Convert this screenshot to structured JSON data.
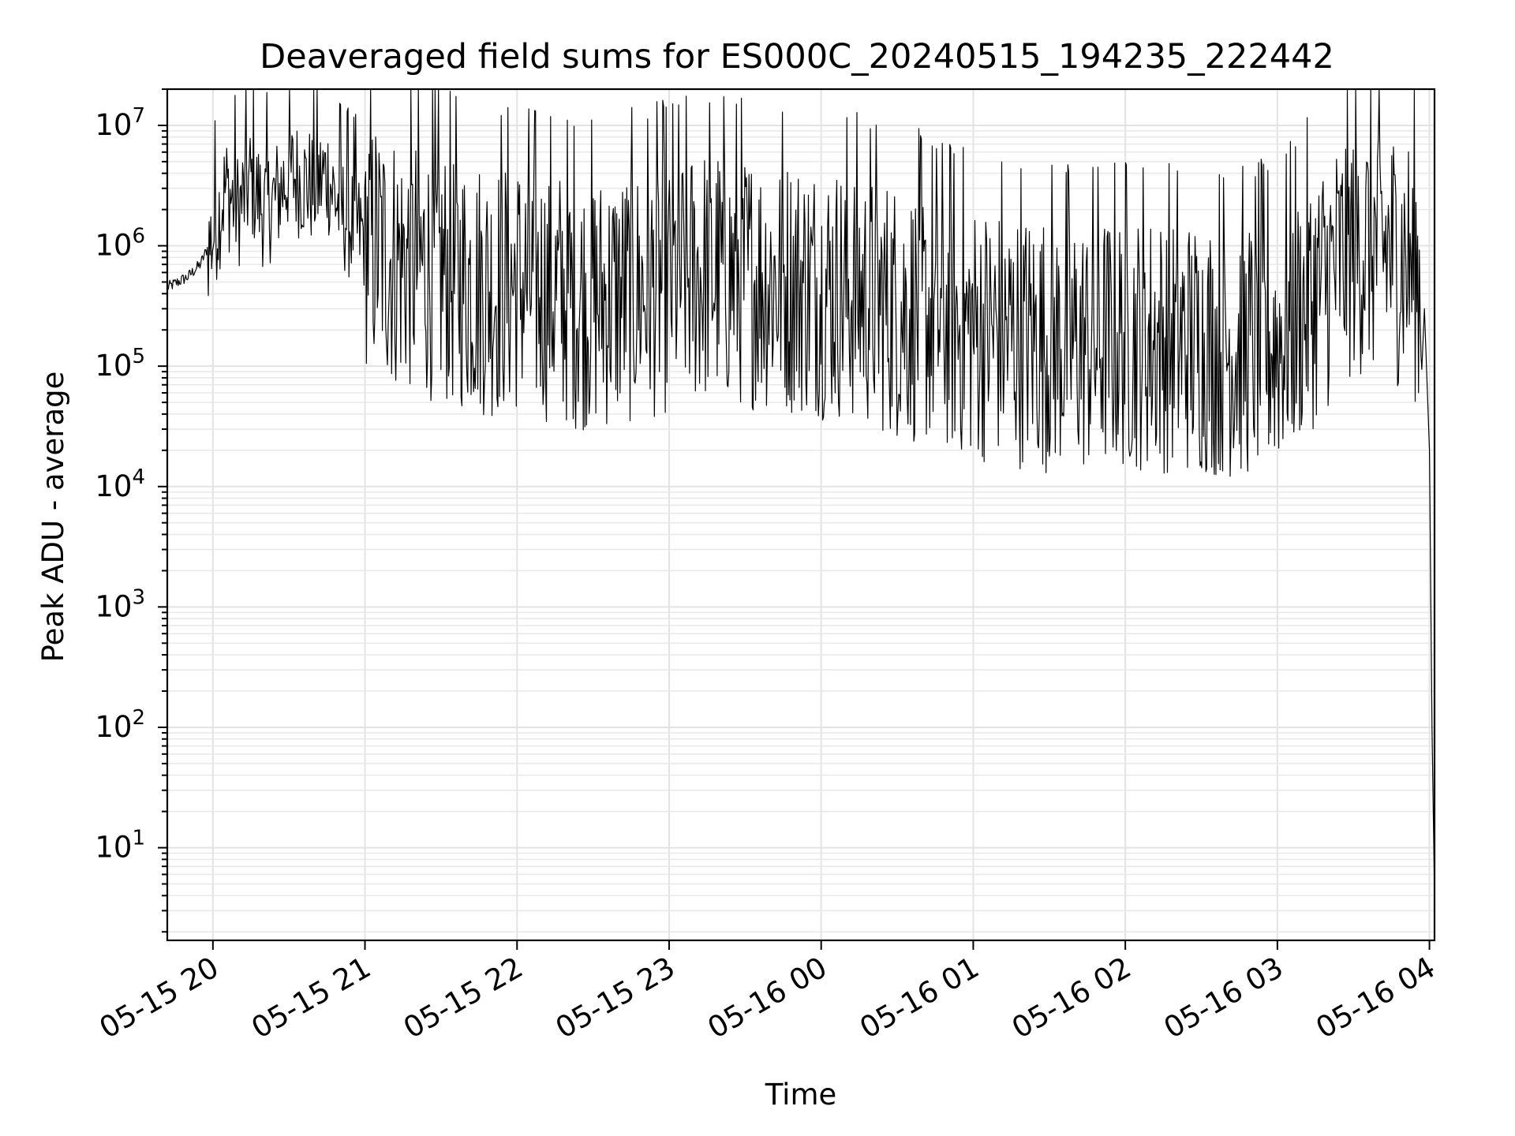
{
  "colors": {
    "background": "#ffffff",
    "line": "#000000",
    "grid": "#e3e3e3",
    "axis": "#000000"
  },
  "chart_data": {
    "type": "line",
    "title": "Deaveraged field sums for ES000C_20240515_194235_222442",
    "xlabel": "Time",
    "ylabel": "Peak ADU - average",
    "y_scale": "log",
    "ylim": [
      1.7,
      20000000
    ],
    "xlim": [
      "2024-05-15 19:42",
      "2024-05-16 04:02"
    ],
    "grid": true,
    "legend": "none",
    "x_tick_labels": [
      "05-15 20",
      "05-15 21",
      "05-15 22",
      "05-15 23",
      "05-16 00",
      "05-16 01",
      "05-16 02",
      "05-16 03",
      "05-16 04"
    ],
    "y_tick_labels": [
      {
        "base": "10",
        "exp": "1"
      },
      {
        "base": "10",
        "exp": "2"
      },
      {
        "base": "10",
        "exp": "3"
      },
      {
        "base": "10",
        "exp": "4"
      },
      {
        "base": "10",
        "exp": "5"
      },
      {
        "base": "10",
        "exp": "6"
      },
      {
        "base": "10",
        "exp": "7"
      }
    ],
    "series": [
      {
        "x": [
          "2024-05-15 19:42",
          "2024-05-15 19:50",
          "2024-05-15 19:55",
          "2024-05-15 20:00",
          "2024-05-15 20:05",
          "2024-05-15 20:10",
          "2024-05-15 20:15",
          "2024-05-15 20:20",
          "2024-05-15 20:25",
          "2024-05-15 20:30",
          "2024-05-15 20:35",
          "2024-05-15 20:40",
          "2024-05-15 20:45",
          "2024-05-15 20:50",
          "2024-05-15 20:55",
          "2024-05-15 21:00",
          "2024-05-15 21:10",
          "2024-05-15 21:20",
          "2024-05-15 21:30",
          "2024-05-15 21:40",
          "2024-05-15 21:50",
          "2024-05-15 22:00",
          "2024-05-15 22:15",
          "2024-05-15 22:30",
          "2024-05-15 22:45",
          "2024-05-15 23:00",
          "2024-05-15 23:15",
          "2024-05-15 23:30",
          "2024-05-15 23:45",
          "2024-05-16 00:00",
          "2024-05-16 00:15",
          "2024-05-16 00:30",
          "2024-05-16 00:45",
          "2024-05-16 01:00",
          "2024-05-16 01:15",
          "2024-05-16 01:30",
          "2024-05-16 01:45",
          "2024-05-16 02:00",
          "2024-05-16 02:15",
          "2024-05-16 02:30",
          "2024-05-16 02:45",
          "2024-05-16 03:00",
          "2024-05-16 03:15",
          "2024-05-16 03:30",
          "2024-05-16 03:40",
          "2024-05-16 03:50",
          "2024-05-16 03:55",
          "2024-05-16 03:58",
          "2024-05-16 04:00",
          "2024-05-16 04:01",
          "2024-05-16 04:02"
        ],
        "y": [
          450000,
          550000,
          700000,
          1200000,
          3000000,
          2000000,
          3500000,
          2000000,
          2500000,
          4000000,
          3500000,
          3000000,
          4000000,
          2000000,
          1500000,
          1200000,
          800000,
          700000,
          600000,
          500000,
          450000,
          500000,
          400000,
          350000,
          400000,
          500000,
          600000,
          550000,
          500000,
          450000,
          400000,
          300000,
          250000,
          200000,
          180000,
          160000,
          150000,
          170000,
          160000,
          150000,
          140000,
          160000,
          400000,
          1000000,
          1000000,
          800000,
          600000,
          300000,
          20000,
          100,
          4
        ]
      }
    ]
  }
}
